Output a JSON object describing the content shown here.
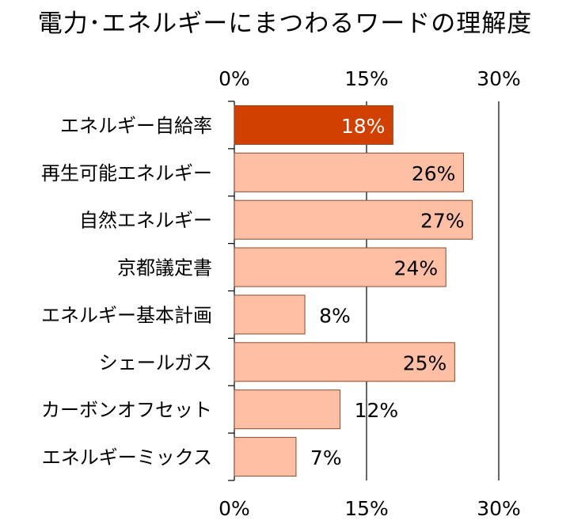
{
  "chart_data": {
    "type": "bar",
    "orientation": "horizontal",
    "title": "電力･エネルギーにまつわるワードの理解度",
    "categories": [
      "エネルギー自給率",
      "再生可能エネルギー",
      "自然エネルギー",
      "京都議定書",
      "エネルギー基本計画",
      "シェールガス",
      "カーボンオフセット",
      "エネルギーミックス"
    ],
    "values": [
      18,
      26,
      27,
      24,
      8,
      25,
      12,
      7
    ],
    "value_labels": [
      "18%",
      "26%",
      "27%",
      "24%",
      "8%",
      "25%",
      "12%",
      "7%"
    ],
    "highlight_index": 0,
    "xlim": [
      0,
      30
    ],
    "ticks": [
      0,
      15,
      30
    ],
    "tick_labels": [
      "0%",
      "15%",
      "30%"
    ],
    "tick_labels_position": "top-and-bottom",
    "grid": true,
    "legend": "none",
    "colors": {
      "bar": "#FFBFA5",
      "bar_highlight": "#D24000",
      "bar_border": "#8A4A2E",
      "grid": "#000000",
      "label_on_highlight": "#FFFFFF",
      "label": "#000000"
    }
  }
}
